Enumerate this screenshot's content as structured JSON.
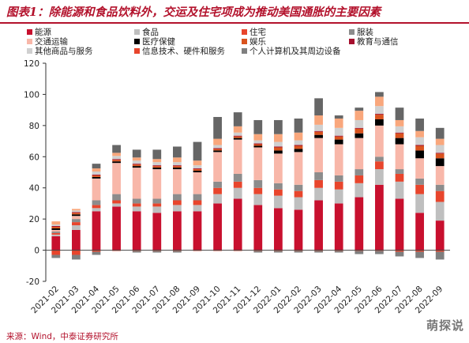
{
  "title": "图表1：除能源和食品饮料外，交运及住宅项成为推动美国通胀的主要因素",
  "source": "来源：Wind，中泰证券研究所",
  "watermark": "萌探说",
  "colors": {
    "title": "#b3122c"
  },
  "chart_data": {
    "type": "bar",
    "stacked": true,
    "categories": [
      "2021-02",
      "2021-03",
      "2021-04",
      "2021-05",
      "2021-06",
      "2021-07",
      "2021-08",
      "2021-09",
      "2021-10",
      "2021-11",
      "2021-12",
      "2022-01",
      "2022-02",
      "2022-03",
      "2022-04",
      "2022-05",
      "2022-06",
      "2022-07",
      "2022-08",
      "2022-09"
    ],
    "ylim": [
      -20,
      120
    ],
    "yticks": [
      -20,
      0,
      20,
      40,
      60,
      80,
      100,
      120
    ],
    "grid": false,
    "legend_position": "top",
    "series": [
      {
        "name": "能源",
        "color": "#c8102e",
        "values": [
          9,
          13,
          25,
          28,
          25,
          24,
          25,
          25,
          30,
          33,
          29,
          27,
          26,
          32,
          30,
          34,
          42,
          33,
          24,
          19
        ]
      },
      {
        "name": "食品",
        "color": "#bfbfbf",
        "values": [
          1,
          3,
          2,
          2,
          3,
          4,
          4,
          4,
          6,
          7,
          7,
          8,
          8,
          8,
          9,
          9,
          10,
          11,
          12,
          12
        ]
      },
      {
        "name": "住宅",
        "color": "#e8452c",
        "values": [
          1,
          2,
          2,
          2,
          2,
          2,
          3,
          3,
          4,
          4,
          4,
          4,
          4,
          5,
          5,
          5,
          5,
          5,
          6,
          7
        ]
      },
      {
        "name": "服装",
        "color": "#8c8c8c",
        "values": [
          1,
          2,
          3,
          4,
          3,
          3,
          4,
          4,
          4,
          5,
          5,
          4,
          4,
          5,
          4,
          4,
          3,
          3,
          4,
          4
        ]
      },
      {
        "name": "交通运输",
        "color": "#f8b7a9",
        "values": [
          1,
          2,
          14,
          20,
          20,
          19,
          16,
          14,
          19,
          22,
          21,
          19,
          21,
          22,
          20,
          20,
          20,
          16,
          13,
          12
        ]
      },
      {
        "name": "医疗保健",
        "color": "#000000",
        "values": [
          1,
          1,
          1,
          1,
          1,
          1,
          1,
          1,
          1,
          1,
          1,
          2,
          2,
          2,
          3,
          3,
          4,
          4,
          5,
          5
        ]
      },
      {
        "name": "娱乐",
        "color": "#d9531e",
        "values": [
          1,
          1,
          1,
          1,
          1,
          1,
          1,
          1,
          1,
          1,
          1,
          2,
          2,
          2,
          2,
          3,
          3,
          3,
          3,
          3
        ]
      },
      {
        "name": "教育与通信",
        "color": "#a50f2d",
        "values": [
          0.5,
          0.5,
          0.5,
          0.5,
          0.5,
          0.5,
          0.5,
          0.5,
          0.5,
          0.5,
          0.5,
          0.5,
          0.5,
          0.5,
          0.5,
          0.5,
          0.5,
          0.5,
          0.5,
          0.5
        ]
      },
      {
        "name": "其他商品与服务",
        "color": "#d0d0d0",
        "values": [
          1,
          1,
          2,
          2,
          2,
          2,
          2,
          2,
          2,
          2,
          2,
          3,
          3,
          4,
          5,
          5,
          5,
          4,
          5,
          5
        ]
      },
      {
        "name": "信息技术、硬件和服务",
        "color": "#e8452c",
        "values": [
          -3,
          -3,
          -1,
          -0.5,
          -0.5,
          -0.5,
          -0.5,
          -0.5,
          -0.5,
          -0.5,
          -0.5,
          -0.5,
          -0.5,
          -0.5,
          -0.5,
          -0.5,
          -0.5,
          -1,
          -1,
          -1
        ]
      },
      {
        "name": "个人计算机及其周边设备",
        "color": "#7f7f7f",
        "values": [
          -2,
          -3,
          -2,
          0,
          -1,
          -1,
          -1,
          0,
          0,
          0,
          -1,
          -1,
          -1,
          -1,
          -1,
          -2,
          -2,
          -3,
          -4,
          -5
        ]
      },
      {
        "name": "",
        "color": "#f9a77c",
        "values": [
          2,
          1,
          2,
          2,
          2,
          2,
          3,
          3,
          4,
          4,
          4,
          5,
          5,
          6,
          6,
          6,
          6,
          4,
          4,
          4
        ]
      },
      {
        "name": "",
        "color": "#666666",
        "values": [
          0,
          0,
          3,
          5,
          5,
          6,
          7,
          12,
          14,
          9,
          9,
          9,
          9,
          11,
          2,
          2,
          3,
          8,
          8,
          7
        ]
      }
    ],
    "legend_layout": [
      [
        0,
        1,
        2,
        3
      ],
      [
        4,
        5,
        6,
        7
      ],
      [
        8,
        9,
        10
      ]
    ]
  }
}
